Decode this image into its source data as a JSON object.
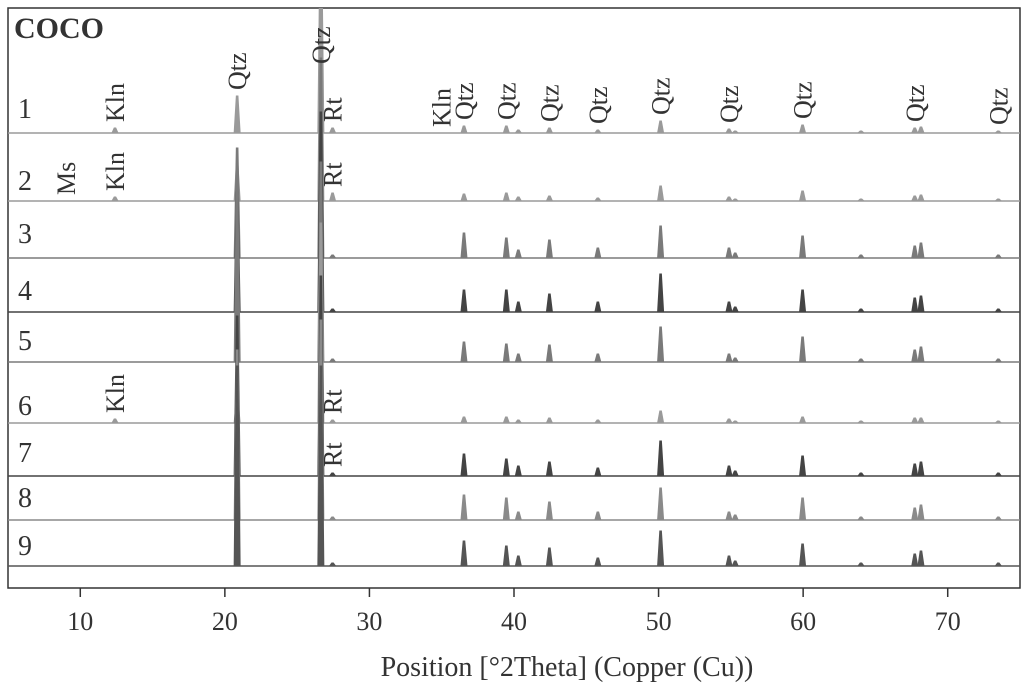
{
  "chart_data": {
    "type": "xrd",
    "title": "COCO",
    "x_label": "Position [°2Theta] (Copper (Cu))",
    "xlim": [
      5,
      75
    ],
    "xticks": [
      10,
      20,
      30,
      40,
      50,
      60,
      70
    ],
    "x": [
      12.4,
      20.85,
      26.64,
      27.45,
      36.54,
      39.47,
      40.3,
      42.45,
      45.8,
      50.14,
      54.87,
      55.3,
      59.96,
      64.0,
      67.72,
      68.15,
      73.5
    ],
    "series": [
      {
        "name": "1",
        "color": "#9a9a9a",
        "values": [
          5,
          37,
          200,
          5,
          7,
          7,
          3,
          5,
          3,
          12,
          4,
          2,
          8,
          2,
          5,
          6,
          2
        ]
      },
      {
        "name": "2",
        "color": "#9a9a9a",
        "values": [
          4,
          37,
          200,
          8,
          7,
          8,
          4,
          5,
          3,
          15,
          4,
          2,
          10,
          2,
          5,
          6,
          2
        ]
      },
      {
        "name": "3",
        "color": "#7a7a7a",
        "values": [
          0,
          110,
          200,
          3,
          25,
          20,
          8,
          18,
          10,
          32,
          10,
          5,
          22,
          3,
          12,
          15,
          3
        ]
      },
      {
        "name": "4",
        "color": "#444444",
        "values": [
          0,
          120,
          200,
          3,
          22,
          22,
          10,
          18,
          10,
          38,
          10,
          5,
          22,
          3,
          14,
          16,
          3
        ]
      },
      {
        "name": "5",
        "color": "#7a7a7a",
        "values": [
          0,
          170,
          200,
          3,
          20,
          18,
          8,
          17,
          8,
          35,
          8,
          4,
          25,
          3,
          12,
          15,
          3
        ]
      },
      {
        "name": "6",
        "color": "#9a9a9a",
        "values": [
          4,
          25,
          200,
          3,
          6,
          6,
          3,
          5,
          3,
          12,
          4,
          2,
          6,
          2,
          5,
          5,
          2
        ]
      },
      {
        "name": "7",
        "color": "#444444",
        "values": [
          0,
          160,
          200,
          3,
          22,
          17,
          10,
          14,
          8,
          35,
          10,
          5,
          20,
          3,
          12,
          14,
          3
        ]
      },
      {
        "name": "8",
        "color": "#8a8a8a",
        "values": [
          0,
          170,
          200,
          3,
          25,
          22,
          8,
          18,
          8,
          32,
          8,
          5,
          22,
          3,
          12,
          15,
          3
        ]
      },
      {
        "name": "9",
        "color": "#555555",
        "values": [
          0,
          200,
          200,
          3,
          25,
          20,
          10,
          18,
          8,
          35,
          10,
          5,
          22,
          3,
          12,
          15,
          3
        ]
      }
    ],
    "annotations": [
      {
        "text": "Kln",
        "x": 12.4,
        "series": 0
      },
      {
        "text": "Qtz",
        "x": 20.85,
        "series": 0
      },
      {
        "text": "Qtz",
        "x": 26.64,
        "series": 0
      },
      {
        "text": "Rt",
        "x": 27.45,
        "series": 0
      },
      {
        "text": "Kln",
        "x": 35.0,
        "series": 0
      },
      {
        "text": "Qtz",
        "x": 36.54,
        "series": 0
      },
      {
        "text": "Qtz",
        "x": 39.47,
        "series": 0
      },
      {
        "text": "Qtz",
        "x": 42.45,
        "series": 0
      },
      {
        "text": "Qtz",
        "x": 45.8,
        "series": 0
      },
      {
        "text": "Qtz",
        "x": 50.14,
        "series": 0
      },
      {
        "text": "Qtz",
        "x": 54.87,
        "series": 0
      },
      {
        "text": "Qtz",
        "x": 59.96,
        "series": 0
      },
      {
        "text": "Qtz",
        "x": 67.72,
        "series": 0
      },
      {
        "text": "Qtz",
        "x": 73.5,
        "series": 0
      },
      {
        "text": "Ms",
        "x": 9.0,
        "series": 1
      },
      {
        "text": "Kln",
        "x": 12.4,
        "series": 1
      },
      {
        "text": "Rt",
        "x": 27.45,
        "series": 1
      },
      {
        "text": "Kln",
        "x": 12.4,
        "series": 5
      },
      {
        "text": "Rt",
        "x": 27.45,
        "series": 5
      },
      {
        "text": "Rt",
        "x": 27.45,
        "series": 6
      }
    ]
  }
}
